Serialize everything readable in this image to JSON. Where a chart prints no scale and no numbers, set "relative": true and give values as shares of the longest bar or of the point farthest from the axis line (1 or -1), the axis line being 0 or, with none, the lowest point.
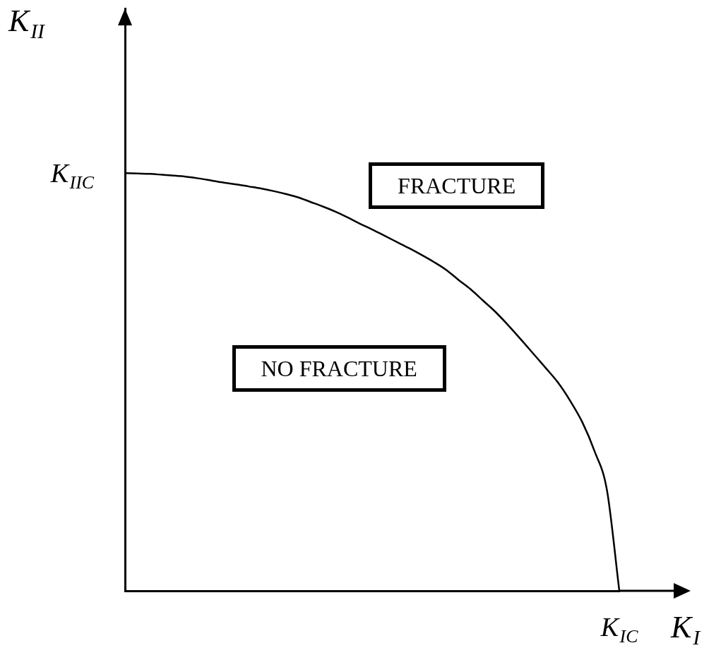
{
  "chart_data": {
    "type": "line",
    "relative": true,
    "xlabel": "K$_{I}$",
    "ylabel": "K$_{II}$",
    "categories": [
      null,
      null,
      null,
      null,
      null,
      null,
      null,
      null,
      null,
      null,
      null,
      null,
      null,
      null,
      null,
      null,
      null,
      null,
      null,
      null,
      null,
      null,
      null,
      null,
      null,
      null,
      null,
      null,
      null,
      null,
      null,
      null,
      null,
      null,
      null,
      null,
      null,
      null,
      null,
      null,
      null
    ],
    "values": [
      1,
      0.999,
      0.998,
      0.996,
      0.994,
      0.991,
      0.987,
      0.982,
      0.977,
      0.973,
      0.968,
      0.963,
      0.957,
      0.95,
      0.942,
      0.931,
      0.92,
      0.908,
      0.894,
      0.879,
      0.865,
      0.85,
      0.835,
      0.82,
      0.804,
      0.787,
      0.768,
      0.744,
      0.721,
      0.694,
      0.667,
      0.636,
      0.603,
      0.569,
      0.535,
      0.5,
      0.456,
      0.404,
      0.334,
      0.241,
      0
    ],
    "color": "#000000",
    "marker": "none",
    "line_style": "solid",
    "annotations": [
      "K$_{IIC}$",
      "K$_{IC}$",
      "FRACTURE",
      "NO FRACTURE"
    ]
  }
}
